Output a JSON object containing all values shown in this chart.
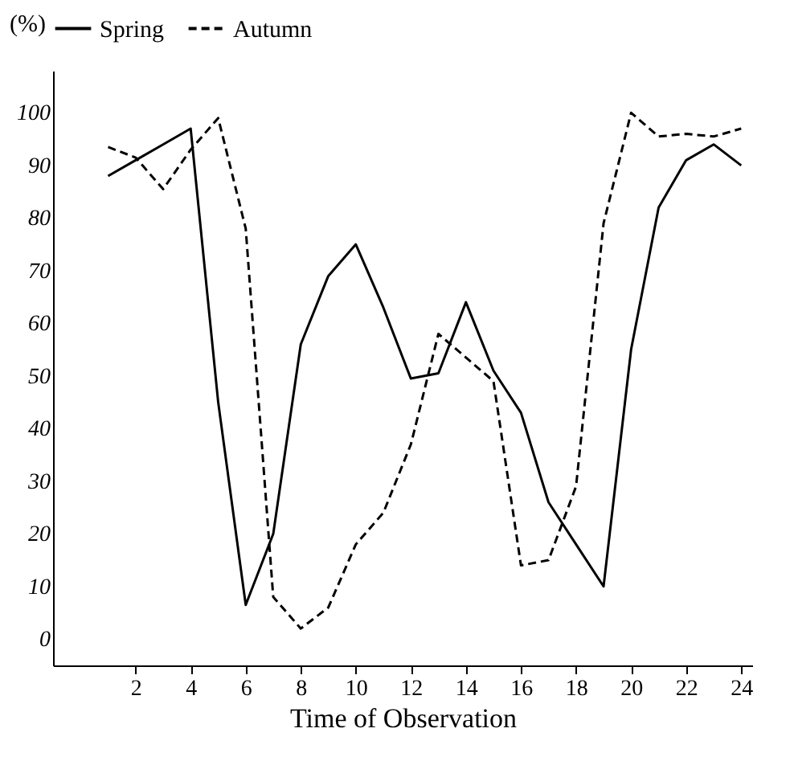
{
  "chart_data": {
    "type": "line",
    "xlabel": "Time of Observation",
    "ylabel": "(%)",
    "x": [
      1,
      2,
      3,
      4,
      5,
      6,
      7,
      8,
      9,
      10,
      11,
      12,
      13,
      14,
      15,
      16,
      17,
      18,
      19,
      20,
      21,
      22,
      23,
      24
    ],
    "series": [
      {
        "name": "Spring",
        "color": "#000000",
        "line_style": "solid",
        "values": [
          88,
          91,
          94,
          97,
          45,
          6.5,
          20,
          56,
          69,
          75,
          63,
          49.5,
          50.5,
          64,
          51,
          43,
          26,
          18,
          10,
          55,
          82,
          91,
          94,
          90
        ]
      },
      {
        "name": "Autumn",
        "color": "#000000",
        "line_style": "dashed",
        "values": [
          93.5,
          91.5,
          85.5,
          93,
          99,
          78,
          8,
          2,
          6,
          18,
          24,
          37,
          58,
          53.5,
          49,
          14,
          15,
          29,
          79,
          100,
          95.5,
          96,
          95.5,
          97
        ]
      }
    ],
    "xlim": [
      -1,
      24.4
    ],
    "ylim": [
      -5,
      108
    ],
    "xticks": [
      2,
      4,
      6,
      8,
      10,
      12,
      14,
      16,
      18,
      20,
      22,
      24
    ],
    "yticks": [
      0,
      10,
      20,
      30,
      40,
      50,
      60,
      70,
      80,
      90,
      100
    ],
    "grid": false,
    "legend": "top",
    "marker": "none"
  }
}
